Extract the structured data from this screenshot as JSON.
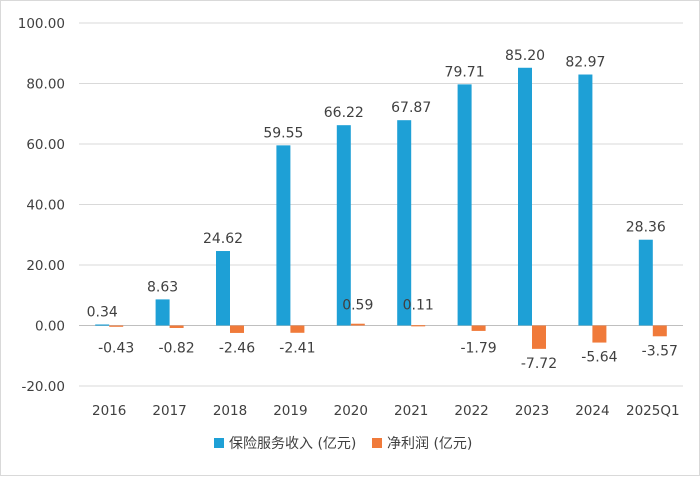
{
  "chart_data": {
    "type": "bar",
    "categories": [
      "2016",
      "2017",
      "2018",
      "2019",
      "2020",
      "2021",
      "2022",
      "2023",
      "2024",
      "2025Q1"
    ],
    "series": [
      {
        "name": "保险服务收入 (亿元)",
        "color": "#1ea0d6",
        "values": [
          0.34,
          8.63,
          24.62,
          59.55,
          66.22,
          67.87,
          79.71,
          85.2,
          82.97,
          28.36
        ],
        "labels": [
          "0.34",
          "8.63",
          "24.62",
          "59.55",
          "66.22",
          "67.87",
          "79.71",
          "85.20",
          "82.97",
          "28.36"
        ]
      },
      {
        "name": "净利润 (亿元)",
        "color": "#f07a3a",
        "values": [
          -0.43,
          -0.82,
          -2.46,
          -2.41,
          0.59,
          0.11,
          -1.79,
          -7.72,
          -5.64,
          -3.57
        ],
        "labels": [
          "-0.43",
          "-0.82",
          "-2.46",
          "-2.41",
          "0.59",
          "0.11",
          "-1.79",
          "-7.72",
          "-5.64",
          "-3.57"
        ]
      }
    ],
    "y_ticks": [
      "100.00",
      "80.00",
      "60.00",
      "40.00",
      "20.00",
      "0.00",
      "-20.00"
    ],
    "ylim": [
      -20,
      100
    ],
    "grid": "horizontal",
    "legend_position": "bottom",
    "xlabel": "",
    "ylabel": ""
  }
}
